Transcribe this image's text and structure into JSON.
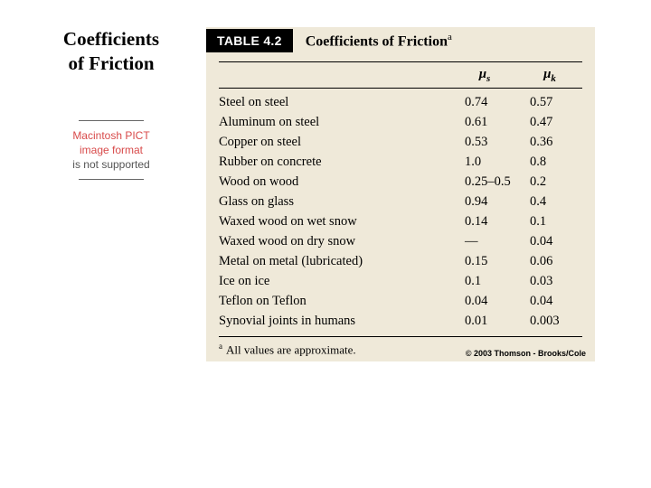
{
  "left": {
    "title_line1": "Coefficients",
    "title_line2": "of Friction",
    "pict_line1": "Macintosh PICT",
    "pict_line2": "image format",
    "pict_line3": "is not supported"
  },
  "table": {
    "tag": "TABLE 4.2",
    "caption": "Coefficients of Friction",
    "caption_sup": "a",
    "header_mus": "μ",
    "header_mus_sub": "s",
    "header_muk": "μ",
    "header_muk_sub": "k",
    "footnote_sup": "a",
    "footnote": "All values are approximate.",
    "copyright": "© 2003 Thomson - Brooks/Cole"
  },
  "rows": [
    {
      "material": "Steel on steel",
      "mus": "0.74",
      "muk": "0.57"
    },
    {
      "material": "Aluminum on steel",
      "mus": "0.61",
      "muk": "0.47"
    },
    {
      "material": "Copper on steel",
      "mus": "0.53",
      "muk": "0.36"
    },
    {
      "material": "Rubber on concrete",
      "mus": "1.0",
      "muk": "0.8"
    },
    {
      "material": "Wood on wood",
      "mus": "0.25–0.5",
      "muk": "0.2"
    },
    {
      "material": "Glass on glass",
      "mus": "0.94",
      "muk": "0.4"
    },
    {
      "material": "Waxed wood on wet snow",
      "mus": "0.14",
      "muk": "0.1"
    },
    {
      "material": "Waxed wood on dry snow",
      "mus": "—",
      "muk": "0.04"
    },
    {
      "material": "Metal on metal (lubricated)",
      "mus": "0.15",
      "muk": "0.06"
    },
    {
      "material": "Ice on ice",
      "mus": "0.1",
      "muk": "0.03"
    },
    {
      "material": "Teflon on Teflon",
      "mus": "0.04",
      "muk": "0.04"
    },
    {
      "material": "Synovial joints in humans",
      "mus": "0.01",
      "muk": "0.003"
    }
  ],
  "colors": {
    "table_bg": "#efe9d9",
    "pict_red": "#d84a4a",
    "text": "#000000"
  }
}
